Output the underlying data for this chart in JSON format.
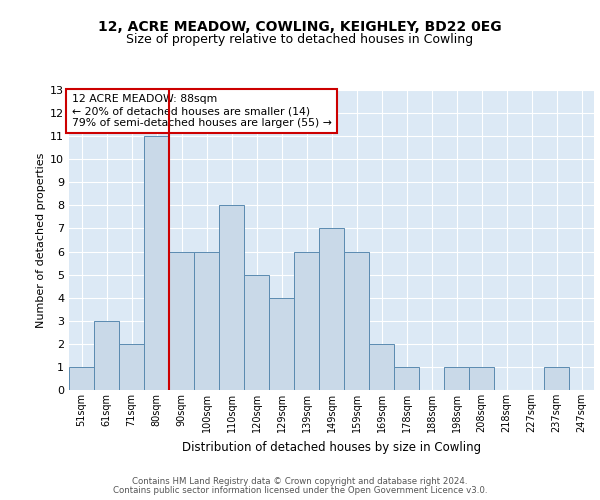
{
  "title1": "12, ACRE MEADOW, COWLING, KEIGHLEY, BD22 0EG",
  "title2": "Size of property relative to detached houses in Cowling",
  "xlabel": "Distribution of detached houses by size in Cowling",
  "ylabel": "Number of detached properties",
  "footer1": "Contains HM Land Registry data © Crown copyright and database right 2024.",
  "footer2": "Contains public sector information licensed under the Open Government Licence v3.0.",
  "annotation_title": "12 ACRE MEADOW: 88sqm",
  "annotation_line2": "← 20% of detached houses are smaller (14)",
  "annotation_line3": "79% of semi-detached houses are larger (55) →",
  "bar_labels": [
    "51sqm",
    "61sqm",
    "71sqm",
    "80sqm",
    "90sqm",
    "100sqm",
    "110sqm",
    "120sqm",
    "129sqm",
    "139sqm",
    "149sqm",
    "159sqm",
    "169sqm",
    "178sqm",
    "188sqm",
    "198sqm",
    "208sqm",
    "218sqm",
    "227sqm",
    "237sqm",
    "247sqm"
  ],
  "bar_values": [
    1,
    3,
    2,
    11,
    6,
    6,
    8,
    5,
    4,
    6,
    7,
    6,
    2,
    1,
    0,
    1,
    1,
    0,
    0,
    1,
    0
  ],
  "bar_color": "#c9d9e8",
  "bar_edge_color": "#5a8ab0",
  "bg_color": "#dce9f5",
  "grid_color": "#ffffff",
  "vline_color": "#cc0000",
  "annotation_box_color": "#cc0000",
  "ylim": [
    0,
    13
  ],
  "yticks": [
    0,
    1,
    2,
    3,
    4,
    5,
    6,
    7,
    8,
    9,
    10,
    11,
    12,
    13
  ],
  "title1_fontsize": 10,
  "title2_fontsize": 9
}
